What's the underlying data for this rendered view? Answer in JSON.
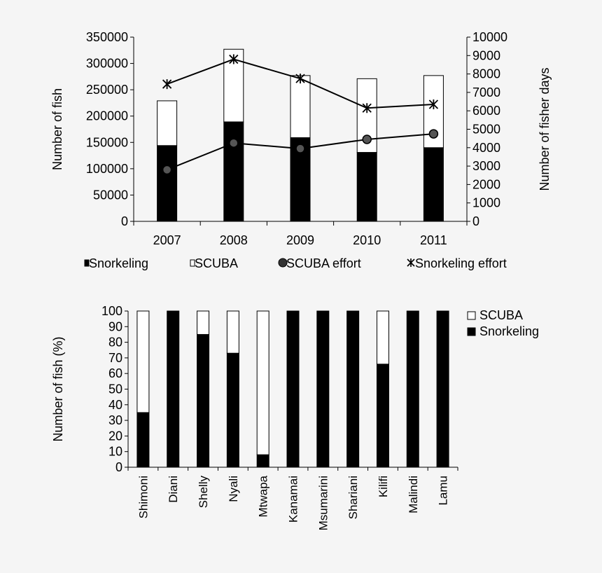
{
  "chart_data": [
    {
      "type": "bar",
      "stacked": true,
      "categories": [
        "2007",
        "2008",
        "2009",
        "2010",
        "2011"
      ],
      "series": [
        {
          "name": "Snorkeling",
          "kind": "bar",
          "axis": "left",
          "color": "#000000",
          "values": [
            144000,
            189000,
            159000,
            131000,
            140000
          ]
        },
        {
          "name": "SCUBA",
          "kind": "bar",
          "axis": "left",
          "color": "#ffffff",
          "values": [
            85000,
            138000,
            118000,
            140000,
            137000
          ]
        },
        {
          "name": "SCUBA effort",
          "kind": "line",
          "marker": "circle",
          "axis": "right",
          "values": [
            2800,
            4250,
            3950,
            4450,
            4750
          ]
        },
        {
          "name": "Snorkeling effort",
          "kind": "line",
          "marker": "asterisk",
          "axis": "right",
          "values": [
            7450,
            8800,
            7750,
            6150,
            6350
          ]
        }
      ],
      "ylabel": "Number  of  fish",
      "ylabel_right": "Number  of  fisher days",
      "ylim": [
        0,
        350000
      ],
      "ylim_right": [
        0,
        10000
      ],
      "yticks": [
        "0",
        "50000",
        "100000",
        "150000",
        "200000",
        "250000",
        "300000",
        "350000"
      ],
      "yticks_right": [
        "0",
        "1000",
        "2000",
        "3000",
        "4000",
        "5000",
        "6000",
        "7000",
        "8000",
        "9000",
        "10000"
      ],
      "legend_position": "bottom",
      "grid": false
    },
    {
      "type": "bar",
      "stacked": true,
      "percent": true,
      "categories": [
        "Shimoni",
        "Diani",
        "Shelly",
        "Nyali",
        "Mtwapa",
        "Kanamai",
        "Msumarini",
        "Shariani",
        "Kilifi",
        "Malindi",
        "Lamu"
      ],
      "series": [
        {
          "name": "Snorkeling",
          "color": "#000000",
          "values": [
            35,
            100,
            85,
            73,
            8,
            100,
            100,
            100,
            66,
            100,
            100
          ]
        },
        {
          "name": "SCUBA",
          "color": "#ffffff",
          "values": [
            65,
            0,
            15,
            27,
            92,
            0,
            0,
            0,
            34,
            0,
            0
          ]
        }
      ],
      "legend_order": [
        "SCUBA",
        "Snorkeling"
      ],
      "ylabel": "Number of fish (%)",
      "ylim": [
        0,
        100
      ],
      "yticks": [
        "0",
        "10",
        "20",
        "30",
        "40",
        "50",
        "60",
        "70",
        "80",
        "90",
        "100"
      ],
      "legend_position": "right",
      "grid": false
    }
  ]
}
